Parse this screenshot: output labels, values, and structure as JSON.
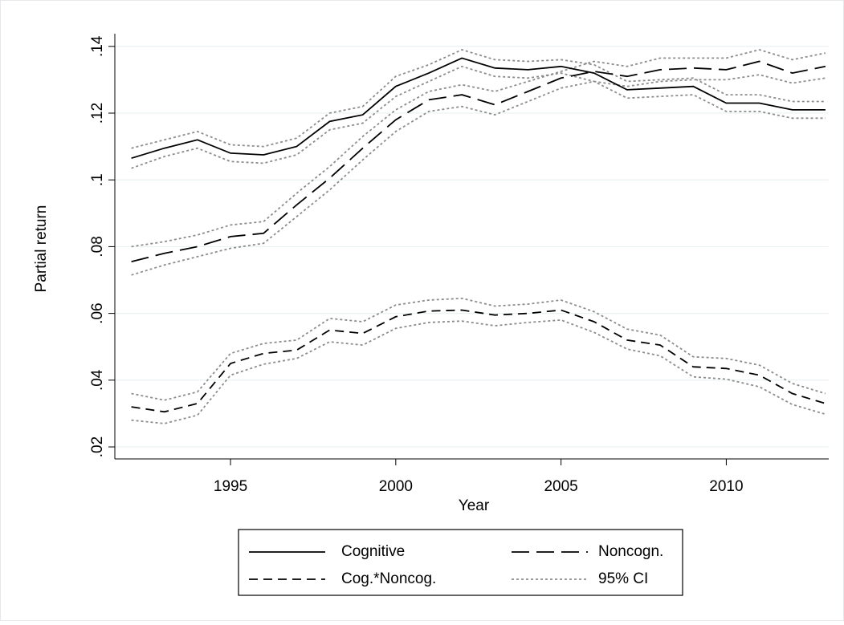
{
  "chart_data": {
    "type": "line",
    "x_label": "Year",
    "y_label": "Partial return",
    "x": [
      1992,
      1993,
      1994,
      1995,
      1996,
      1997,
      1998,
      1999,
      2000,
      2001,
      2002,
      2003,
      2004,
      2005,
      2006,
      2007,
      2008,
      2009,
      2010,
      2011,
      2012,
      2013
    ],
    "xlim": [
      1991.5,
      2013.1
    ],
    "xticks": [
      1995,
      2000,
      2005,
      2010
    ],
    "ylim": [
      0.0164,
      0.1438
    ],
    "yticks": [
      {
        "value": 0.02,
        "label": ".02"
      },
      {
        "value": 0.04,
        "label": ".04"
      },
      {
        "value": 0.06,
        "label": ".06"
      },
      {
        "value": 0.08,
        "label": ".08"
      },
      {
        "value": 0.1,
        "label": ".1"
      },
      {
        "value": 0.12,
        "label": ".12"
      },
      {
        "value": 0.14,
        "label": ".14"
      }
    ],
    "grid": true,
    "series": [
      {
        "name": "Cognitive",
        "color": "#000000",
        "dash": "none",
        "values": [
          0.1065,
          0.1095,
          0.112,
          0.108,
          0.1075,
          0.11,
          0.1175,
          0.1195,
          0.128,
          0.132,
          0.1365,
          0.1335,
          0.133,
          0.134,
          0.132,
          0.127,
          0.1275,
          0.128,
          0.123,
          0.123,
          0.121,
          0.121
        ],
        "ci_upper": [
          0.1095,
          0.112,
          0.1145,
          0.1105,
          0.11,
          0.1125,
          0.12,
          0.122,
          0.131,
          0.1345,
          0.139,
          0.136,
          0.1355,
          0.136,
          0.1345,
          0.1295,
          0.13,
          0.1305,
          0.1255,
          0.1255,
          0.1235,
          0.1235
        ],
        "ci_lower": [
          0.1035,
          0.107,
          0.1095,
          0.1055,
          0.105,
          0.1075,
          0.115,
          0.117,
          0.125,
          0.1295,
          0.134,
          0.131,
          0.1305,
          0.132,
          0.1295,
          0.1245,
          0.125,
          0.1255,
          0.1205,
          0.1205,
          0.1185,
          0.1185
        ]
      },
      {
        "name": "Noncogn.",
        "color": "#000000",
        "dash": "22,9",
        "values": [
          0.0755,
          0.078,
          0.08,
          0.083,
          0.084,
          0.0925,
          0.1005,
          0.1095,
          0.118,
          0.124,
          0.1255,
          0.1225,
          0.1265,
          0.1305,
          0.1325,
          0.131,
          0.133,
          0.1335,
          0.133,
          0.1355,
          0.132,
          0.134
        ],
        "ci_upper": [
          0.08,
          0.0815,
          0.0835,
          0.0865,
          0.0875,
          0.096,
          0.104,
          0.113,
          0.121,
          0.1265,
          0.1285,
          0.1265,
          0.1295,
          0.1325,
          0.1355,
          0.134,
          0.1365,
          0.1365,
          0.1365,
          0.139,
          0.136,
          0.138
        ],
        "ci_lower": [
          0.0715,
          0.0745,
          0.077,
          0.0795,
          0.081,
          0.089,
          0.097,
          0.106,
          0.1145,
          0.1205,
          0.122,
          0.1195,
          0.1235,
          0.1275,
          0.1295,
          0.128,
          0.1295,
          0.13,
          0.13,
          0.1315,
          0.129,
          0.1305
        ]
      },
      {
        "name": "Cog.*Noncog.",
        "color": "#000000",
        "dash": "11,7",
        "values": [
          0.032,
          0.0305,
          0.033,
          0.045,
          0.048,
          0.049,
          0.055,
          0.054,
          0.059,
          0.0607,
          0.061,
          0.0595,
          0.06,
          0.061,
          0.0575,
          0.052,
          0.0505,
          0.044,
          0.0435,
          0.0415,
          0.036,
          0.033
        ],
        "ci_upper": [
          0.036,
          0.034,
          0.0365,
          0.048,
          0.051,
          0.052,
          0.0585,
          0.0575,
          0.0625,
          0.064,
          0.0645,
          0.0622,
          0.0628,
          0.064,
          0.0605,
          0.0553,
          0.0535,
          0.047,
          0.0465,
          0.0445,
          0.039,
          0.036
        ],
        "ci_lower": [
          0.028,
          0.027,
          0.0295,
          0.0415,
          0.0448,
          0.0465,
          0.0515,
          0.0505,
          0.0555,
          0.0573,
          0.0577,
          0.0563,
          0.0573,
          0.058,
          0.0543,
          0.0493,
          0.0473,
          0.041,
          0.0403,
          0.038,
          0.0327,
          0.0298
        ]
      }
    ],
    "ci_label": "95% CI",
    "ci_color": "#8c8c8c"
  }
}
